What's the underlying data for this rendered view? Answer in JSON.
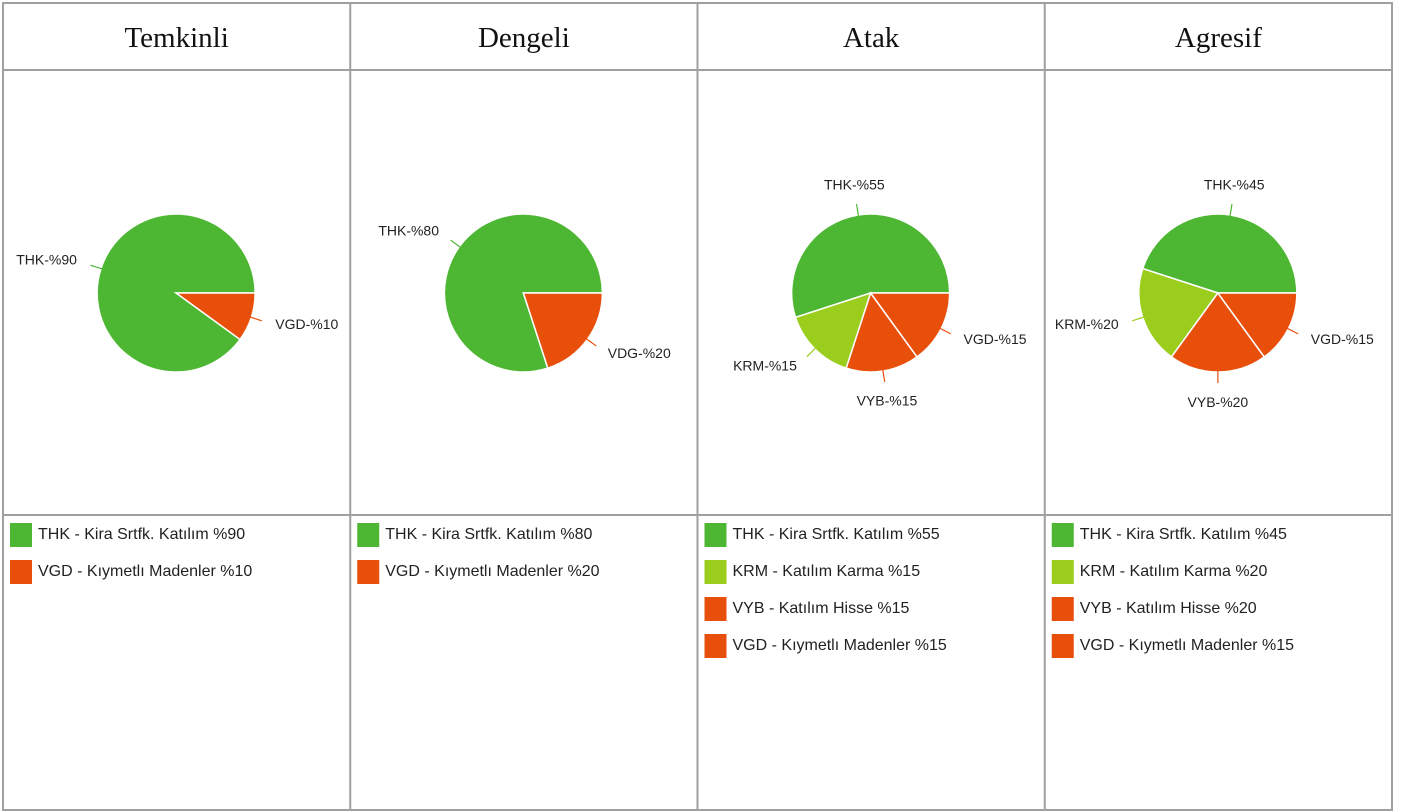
{
  "chart_data": [
    {
      "type": "pie",
      "title": "Temkinli",
      "categories": [
        "THK  - Kira Srtfk. Katılım %90",
        "VGD - Kıymetlı Madenler %10"
      ],
      "values": [
        90,
        10
      ],
      "value_labels": [
        "THK-%90",
        "VGD-%10"
      ],
      "colors": [
        "#4db733",
        "#e84f0a"
      ]
    },
    {
      "type": "pie",
      "title": "Dengeli",
      "categories": [
        "THK  - Kira Srtfk. Katılım %80",
        "VGD - Kıymetlı Madenler %20"
      ],
      "values": [
        80,
        20
      ],
      "value_labels": [
        "THK-%80",
        "VDG-%20"
      ],
      "colors": [
        "#4db733",
        "#e84f0a"
      ]
    },
    {
      "type": "pie",
      "title": "Atak",
      "categories": [
        "THK  - Kira Srtfk. Katılım %55",
        "KRM - Katılım Karma %15",
        "VYB - Katılım Hisse %15",
        "VGD - Kıymetlı Madenler %15"
      ],
      "values": [
        55,
        15,
        15,
        15
      ],
      "value_labels": [
        "THK-%55",
        "KRM-%15",
        "VYB-%15",
        "VGD-%15"
      ],
      "colors": [
        "#4db733",
        "#9acd1c",
        "#e84f0a",
        "#e84f0a"
      ]
    },
    {
      "type": "pie",
      "title": "Agresif",
      "categories": [
        "THK  - Kira Srtfk. Katılım %45",
        "KRM - Katılım Karma %20",
        "VYB - Katılım Hisse %20",
        "VGD - Kıymetlı Madenler %15"
      ],
      "values": [
        45,
        20,
        20,
        15
      ],
      "value_labels": [
        "THK-%45",
        "KRM-%20",
        "VYB-%20",
        "VGD-%15"
      ],
      "colors": [
        "#4db733",
        "#9acd1c",
        "#e84f0a",
        "#e84f0a"
      ]
    }
  ]
}
